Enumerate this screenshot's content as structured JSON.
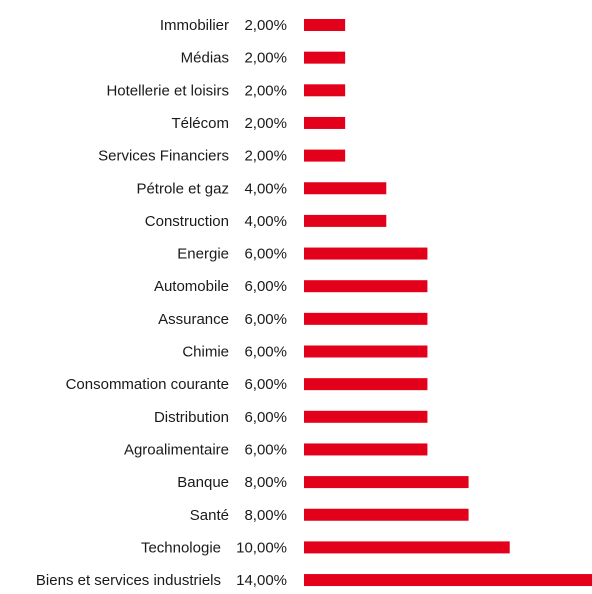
{
  "chart_data": {
    "type": "bar",
    "orientation": "horizontal",
    "categories": [
      "Immobilier",
      "Médias",
      "Hotellerie et loisirs",
      "Télécom",
      "Services Financiers",
      "Pétrole et gaz",
      "Construction",
      "Energie",
      "Automobile",
      "Assurance",
      "Chimie",
      "Consommation courante",
      "Distribution",
      "Agroalimentaire",
      "Banque",
      "Santé",
      "Technologie",
      "Biens et services industriels"
    ],
    "values": [
      2,
      2,
      2,
      2,
      2,
      4,
      4,
      6,
      6,
      6,
      6,
      6,
      6,
      6,
      8,
      8,
      10,
      14
    ],
    "value_labels": [
      "2,00%",
      "2,00%",
      "2,00%",
      "2,00%",
      "2,00%",
      "4,00%",
      "4,00%",
      "6,00%",
      "6,00%",
      "6,00%",
      "6,00%",
      "6,00%",
      "6,00%",
      "6,00%",
      "8,00%",
      "8,00%",
      "10,00%",
      "14,00%"
    ],
    "unit": "%",
    "xlim": [
      0,
      14
    ],
    "grid": false,
    "legend": "none",
    "bar_color": "#e3001b"
  }
}
